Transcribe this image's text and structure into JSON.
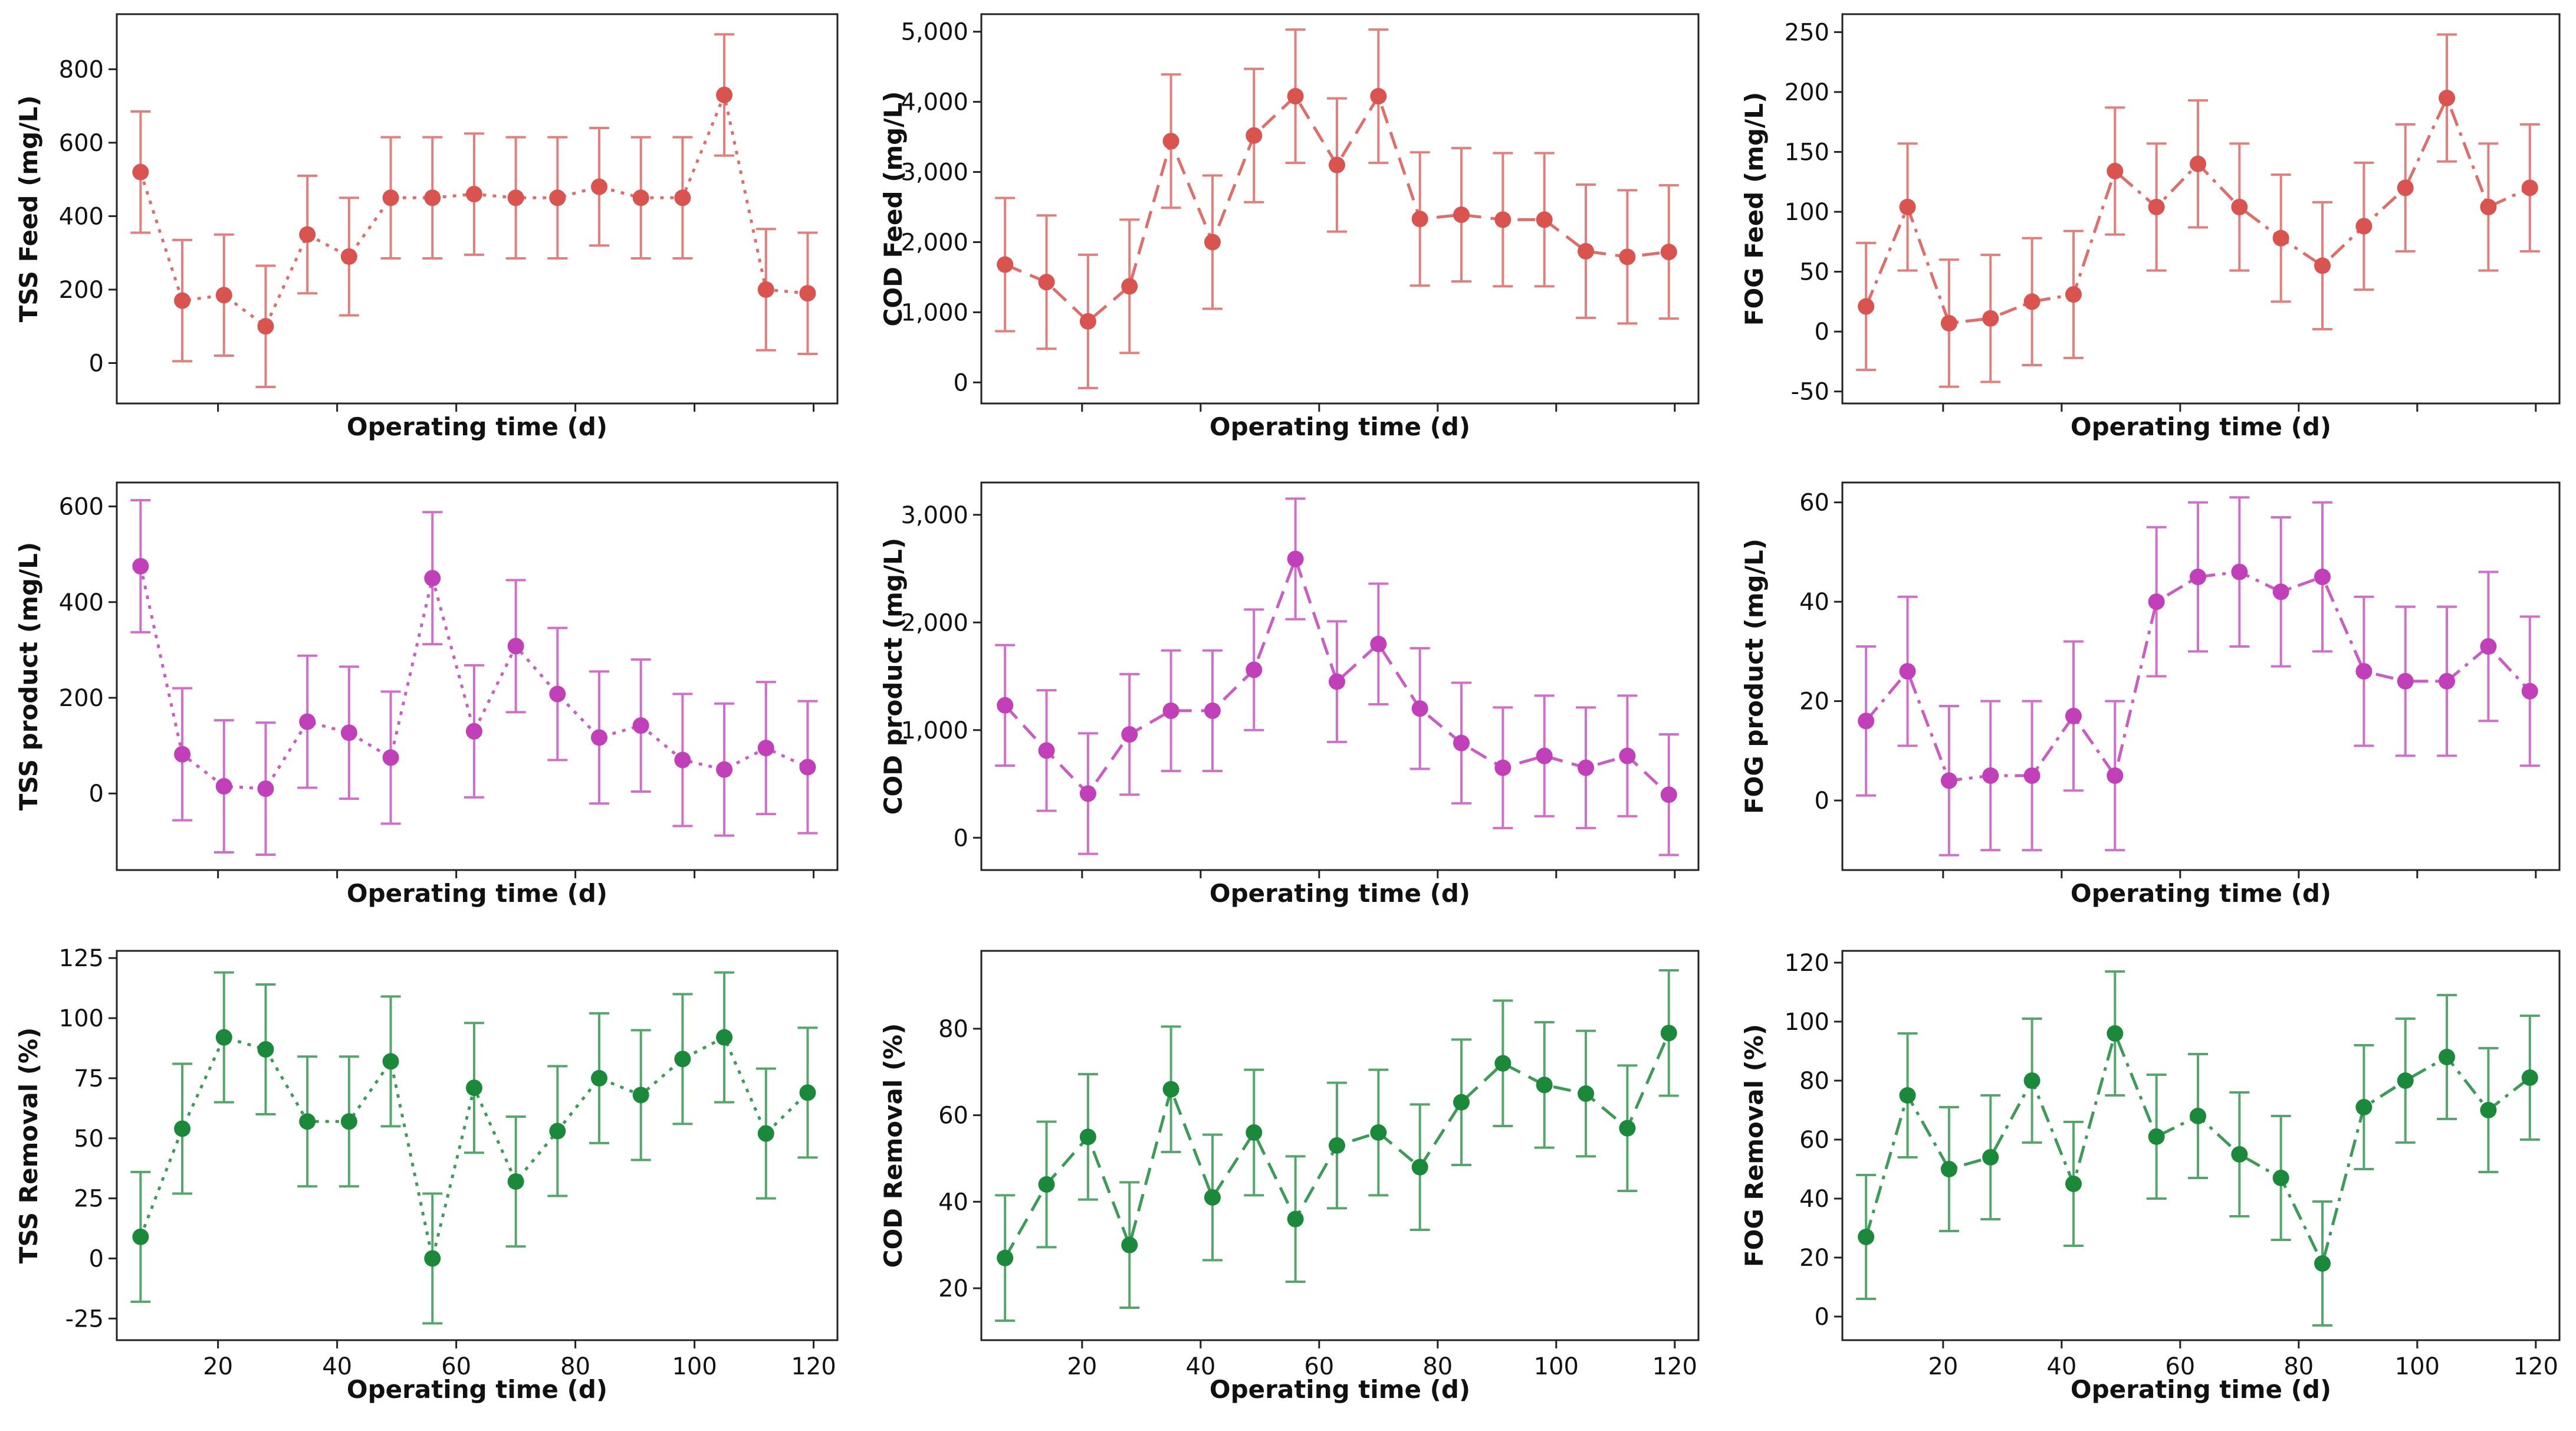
{
  "chart_data": [
    {
      "id": "tss-feed",
      "type": "line",
      "ylabel": "TSS Feed (mg/L)",
      "xlabel": "Operating time (d)",
      "color": "#d9534f",
      "line_style": "dotted",
      "xlim": [
        3,
        124
      ],
      "ylim": [
        -110,
        950
      ],
      "yticks": [
        {
          "v": 0,
          "label": "0"
        },
        {
          "v": 200,
          "label": "200"
        },
        {
          "v": 400,
          "label": "400"
        },
        {
          "v": 600,
          "label": "600"
        },
        {
          "v": 800,
          "label": "800"
        }
      ],
      "xticks": [
        {
          "v": 20,
          "label": ""
        },
        {
          "v": 40,
          "label": ""
        },
        {
          "v": 60,
          "label": ""
        },
        {
          "v": 80,
          "label": ""
        },
        {
          "v": 100,
          "label": ""
        },
        {
          "v": 120,
          "label": ""
        }
      ],
      "x": [
        7,
        14,
        21,
        28,
        35,
        42,
        49,
        56,
        63,
        70,
        77,
        84,
        91,
        98,
        105,
        112,
        119
      ],
      "y": [
        520,
        170,
        185,
        100,
        350,
        290,
        450,
        450,
        460,
        450,
        450,
        480,
        450,
        450,
        730,
        200,
        190
      ],
      "err": [
        165,
        165,
        165,
        165,
        160,
        160,
        165,
        165,
        165,
        165,
        165,
        160,
        165,
        165,
        165,
        165,
        165
      ]
    },
    {
      "id": "cod-feed",
      "type": "line",
      "ylabel": "COD Feed (mg/L)",
      "xlabel": "Operating time (d)",
      "color": "#d9534f",
      "line_style": "dashed",
      "xlim": [
        3,
        124
      ],
      "ylim": [
        -300,
        5250
      ],
      "yticks": [
        {
          "v": 0,
          "label": "0"
        },
        {
          "v": 1000,
          "label": "1,000"
        },
        {
          "v": 2000,
          "label": "2,000"
        },
        {
          "v": 3000,
          "label": "3,000"
        },
        {
          "v": 4000,
          "label": "4,000"
        },
        {
          "v": 5000,
          "label": "5,000"
        }
      ],
      "xticks": [
        {
          "v": 20,
          "label": ""
        },
        {
          "v": 40,
          "label": ""
        },
        {
          "v": 60,
          "label": ""
        },
        {
          "v": 80,
          "label": ""
        },
        {
          "v": 100,
          "label": ""
        },
        {
          "v": 120,
          "label": ""
        }
      ],
      "x": [
        7,
        14,
        21,
        28,
        35,
        42,
        49,
        56,
        63,
        70,
        77,
        84,
        91,
        98,
        105,
        112,
        119
      ],
      "y": [
        1680,
        1430,
        870,
        1370,
        3440,
        2000,
        3520,
        4080,
        3100,
        4080,
        2330,
        2390,
        2320,
        2320,
        1870,
        1790,
        1860
      ],
      "err": [
        950,
        950,
        950,
        950,
        950,
        950,
        950,
        950,
        950,
        950,
        950,
        950,
        950,
        950,
        950,
        950,
        950
      ]
    },
    {
      "id": "fog-feed",
      "type": "line",
      "ylabel": "FOG Feed (mg/L)",
      "xlabel": "Operating time (d)",
      "color": "#d9534f",
      "line_style": "dashdot",
      "xlim": [
        3,
        124
      ],
      "ylim": [
        -60,
        265
      ],
      "yticks": [
        {
          "v": -50,
          "label": "-50"
        },
        {
          "v": 0,
          "label": "0"
        },
        {
          "v": 50,
          "label": "50"
        },
        {
          "v": 100,
          "label": "100"
        },
        {
          "v": 150,
          "label": "150"
        },
        {
          "v": 200,
          "label": "200"
        },
        {
          "v": 250,
          "label": "250"
        }
      ],
      "xticks": [
        {
          "v": 20,
          "label": ""
        },
        {
          "v": 40,
          "label": ""
        },
        {
          "v": 60,
          "label": ""
        },
        {
          "v": 80,
          "label": ""
        },
        {
          "v": 100,
          "label": ""
        },
        {
          "v": 120,
          "label": ""
        }
      ],
      "x": [
        7,
        14,
        21,
        28,
        35,
        42,
        49,
        56,
        63,
        70,
        77,
        84,
        91,
        98,
        105,
        112,
        119
      ],
      "y": [
        21,
        104,
        7,
        11,
        25,
        31,
        134,
        104,
        140,
        104,
        78,
        55,
        88,
        120,
        195,
        104,
        120
      ],
      "err": [
        53,
        53,
        53,
        53,
        53,
        53,
        53,
        53,
        53,
        53,
        53,
        53,
        53,
        53,
        53,
        53,
        53
      ]
    },
    {
      "id": "tss-product",
      "type": "line",
      "ylabel": "TSS product (mg/L)",
      "xlabel": "Operating time (d)",
      "color": "#c13fb9",
      "line_style": "dotted",
      "xlim": [
        3,
        124
      ],
      "ylim": [
        -160,
        650
      ],
      "yticks": [
        {
          "v": 0,
          "label": "0"
        },
        {
          "v": 200,
          "label": "200"
        },
        {
          "v": 400,
          "label": "400"
        },
        {
          "v": 600,
          "label": "600"
        }
      ],
      "xticks": [
        {
          "v": 20,
          "label": ""
        },
        {
          "v": 40,
          "label": ""
        },
        {
          "v": 60,
          "label": ""
        },
        {
          "v": 80,
          "label": ""
        },
        {
          "v": 100,
          "label": ""
        },
        {
          "v": 120,
          "label": ""
        }
      ],
      "x": [
        7,
        14,
        21,
        28,
        35,
        42,
        49,
        56,
        63,
        70,
        77,
        84,
        91,
        98,
        105,
        112,
        119
      ],
      "y": [
        475,
        82,
        15,
        10,
        150,
        127,
        75,
        450,
        130,
        308,
        208,
        117,
        142,
        70,
        50,
        95,
        55
      ],
      "err": [
        138,
        138,
        138,
        138,
        138,
        138,
        138,
        138,
        138,
        138,
        138,
        138,
        138,
        138,
        138,
        138,
        138
      ]
    },
    {
      "id": "cod-product",
      "type": "line",
      "ylabel": "COD product (mg/L)",
      "xlabel": "Operating time (d)",
      "color": "#c13fb9",
      "line_style": "dashed",
      "xlim": [
        3,
        124
      ],
      "ylim": [
        -300,
        3300
      ],
      "yticks": [
        {
          "v": 0,
          "label": "0"
        },
        {
          "v": 1000,
          "label": "1,000"
        },
        {
          "v": 2000,
          "label": "2,000"
        },
        {
          "v": 3000,
          "label": "3,000"
        }
      ],
      "xticks": [
        {
          "v": 20,
          "label": ""
        },
        {
          "v": 40,
          "label": ""
        },
        {
          "v": 60,
          "label": ""
        },
        {
          "v": 80,
          "label": ""
        },
        {
          "v": 100,
          "label": ""
        },
        {
          "v": 120,
          "label": ""
        }
      ],
      "x": [
        7,
        14,
        21,
        28,
        35,
        42,
        49,
        56,
        63,
        70,
        77,
        84,
        91,
        98,
        105,
        112,
        119
      ],
      "y": [
        1230,
        810,
        410,
        960,
        1180,
        1180,
        1560,
        2590,
        1450,
        1800,
        1200,
        880,
        650,
        760,
        650,
        760,
        400
      ],
      "err": [
        560,
        560,
        560,
        560,
        560,
        560,
        560,
        560,
        560,
        560,
        560,
        560,
        560,
        560,
        560,
        560,
        560
      ]
    },
    {
      "id": "fog-product",
      "type": "line",
      "ylabel": "FOG product (mg/L)",
      "xlabel": "Operating time (d)",
      "color": "#c13fb9",
      "line_style": "dashdot",
      "xlim": [
        3,
        124
      ],
      "ylim": [
        -14,
        64
      ],
      "yticks": [
        {
          "v": 0,
          "label": "0"
        },
        {
          "v": 20,
          "label": "20"
        },
        {
          "v": 40,
          "label": "40"
        },
        {
          "v": 60,
          "label": "60"
        }
      ],
      "xticks": [
        {
          "v": 20,
          "label": ""
        },
        {
          "v": 40,
          "label": ""
        },
        {
          "v": 60,
          "label": ""
        },
        {
          "v": 80,
          "label": ""
        },
        {
          "v": 100,
          "label": ""
        },
        {
          "v": 120,
          "label": ""
        }
      ],
      "x": [
        7,
        14,
        21,
        28,
        35,
        42,
        49,
        56,
        63,
        70,
        77,
        84,
        91,
        98,
        105,
        112,
        119
      ],
      "y": [
        16,
        26,
        4,
        5,
        5,
        17,
        5,
        40,
        45,
        46,
        42,
        45,
        26,
        24,
        24,
        31,
        22
      ],
      "err": [
        15,
        15,
        15,
        15,
        15,
        15,
        15,
        15,
        15,
        15,
        15,
        15,
        15,
        15,
        15,
        15,
        15
      ]
    },
    {
      "id": "tss-removal",
      "type": "line",
      "ylabel": "TSS Removal (%)",
      "xlabel": "Operating time (d)",
      "color": "#1a8a3a",
      "line_style": "dotted",
      "xlim": [
        3,
        124
      ],
      "ylim": [
        -34,
        128
      ],
      "yticks": [
        {
          "v": -25,
          "label": "-25"
        },
        {
          "v": 0,
          "label": "0"
        },
        {
          "v": 25,
          "label": "25"
        },
        {
          "v": 50,
          "label": "50"
        },
        {
          "v": 75,
          "label": "75"
        },
        {
          "v": 100,
          "label": "100"
        },
        {
          "v": 125,
          "label": "125"
        }
      ],
      "xticks": [
        {
          "v": 20,
          "label": "20"
        },
        {
          "v": 40,
          "label": "40"
        },
        {
          "v": 60,
          "label": "60"
        },
        {
          "v": 80,
          "label": "80"
        },
        {
          "v": 100,
          "label": "100"
        },
        {
          "v": 120,
          "label": "120"
        }
      ],
      "x": [
        7,
        14,
        21,
        28,
        35,
        42,
        49,
        56,
        63,
        70,
        77,
        84,
        91,
        98,
        105,
        112,
        119
      ],
      "y": [
        9,
        54,
        92,
        87,
        57,
        57,
        82,
        0,
        71,
        32,
        53,
        75,
        68,
        83,
        92,
        52,
        69
      ],
      "err": [
        27,
        27,
        27,
        27,
        27,
        27,
        27,
        27,
        27,
        27,
        27,
        27,
        27,
        27,
        27,
        27,
        27
      ]
    },
    {
      "id": "cod-removal",
      "type": "line",
      "ylabel": "COD Removal (%)",
      "xlabel": "Operating time (d)",
      "color": "#1a8a3a",
      "line_style": "dashed",
      "xlim": [
        3,
        124
      ],
      "ylim": [
        8,
        98
      ],
      "yticks": [
        {
          "v": 20,
          "label": "20"
        },
        {
          "v": 40,
          "label": "40"
        },
        {
          "v": 60,
          "label": "60"
        },
        {
          "v": 80,
          "label": "80"
        }
      ],
      "xticks": [
        {
          "v": 20,
          "label": "20"
        },
        {
          "v": 40,
          "label": "40"
        },
        {
          "v": 60,
          "label": "60"
        },
        {
          "v": 80,
          "label": "80"
        },
        {
          "v": 100,
          "label": "100"
        },
        {
          "v": 120,
          "label": "120"
        }
      ],
      "x": [
        7,
        14,
        21,
        28,
        35,
        42,
        49,
        56,
        63,
        70,
        77,
        84,
        91,
        98,
        105,
        112,
        119
      ],
      "y": [
        27,
        44,
        55,
        30,
        66,
        41,
        56,
        36,
        53,
        56,
        48,
        63,
        72,
        67,
        65,
        57,
        79
      ],
      "err": [
        14.5,
        14.5,
        14.5,
        14.5,
        14.5,
        14.5,
        14.5,
        14.5,
        14.5,
        14.5,
        14.5,
        14.5,
        14.5,
        14.5,
        14.5,
        14.5,
        14.5
      ]
    },
    {
      "id": "fog-removal",
      "type": "line",
      "ylabel": "FOG Removal (%)",
      "xlabel": "Operating time (d)",
      "color": "#1a8a3a",
      "line_style": "dashdot",
      "xlim": [
        3,
        124
      ],
      "ylim": [
        -8,
        124
      ],
      "yticks": [
        {
          "v": 0,
          "label": "0"
        },
        {
          "v": 20,
          "label": "20"
        },
        {
          "v": 40,
          "label": "40"
        },
        {
          "v": 60,
          "label": "60"
        },
        {
          "v": 80,
          "label": "80"
        },
        {
          "v": 100,
          "label": "100"
        },
        {
          "v": 120,
          "label": "120"
        }
      ],
      "xticks": [
        {
          "v": 20,
          "label": "20"
        },
        {
          "v": 40,
          "label": "40"
        },
        {
          "v": 60,
          "label": "60"
        },
        {
          "v": 80,
          "label": "80"
        },
        {
          "v": 100,
          "label": "100"
        },
        {
          "v": 120,
          "label": "120"
        }
      ],
      "x": [
        7,
        14,
        21,
        28,
        35,
        42,
        49,
        56,
        63,
        70,
        77,
        84,
        91,
        98,
        105,
        112,
        119
      ],
      "y": [
        27,
        75,
        50,
        54,
        80,
        45,
        96,
        61,
        68,
        55,
        47,
        18,
        71,
        80,
        88,
        70,
        81
      ],
      "err": [
        21,
        21,
        21,
        21,
        21,
        21,
        21,
        21,
        21,
        21,
        21,
        21,
        21,
        21,
        21,
        21,
        21
      ]
    }
  ]
}
